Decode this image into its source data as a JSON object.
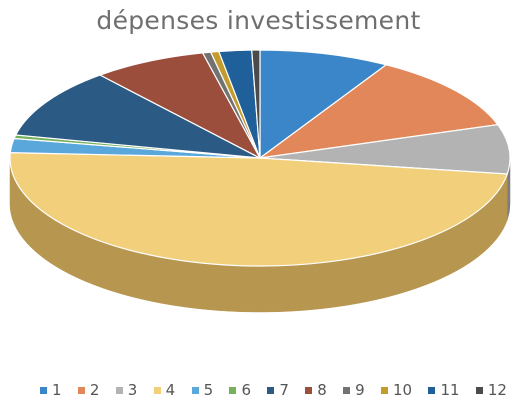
{
  "chart_data": {
    "type": "pie",
    "title": "dépenses investissement",
    "legend_position": "bottom",
    "categories": [
      "1",
      "2",
      "3",
      "4",
      "5",
      "6",
      "7",
      "8",
      "9",
      "10",
      "11",
      "12"
    ],
    "values": [
      8,
      11,
      7,
      46,
      2,
      0.5,
      10,
      7,
      0.5,
      0.5,
      2,
      0.5
    ],
    "colors": [
      "#3a86c8",
      "#e2875a",
      "#b3b3b3",
      "#f2cf7a",
      "#5aa7dc",
      "#76b15c",
      "#2b5a84",
      "#9c4e3c",
      "#727272",
      "#c49c2e",
      "#1f5f9a",
      "#4b4b4b"
    ],
    "side_colors": [
      "#24568a",
      "#9a5a36",
      "#7c7c7c",
      "#b7964f",
      "#3b739c",
      "#4e7a3c",
      "#1a3d5c",
      "#6c3428",
      "#4c4c4c",
      "#85691c",
      "#123e66",
      "#323232"
    ]
  }
}
